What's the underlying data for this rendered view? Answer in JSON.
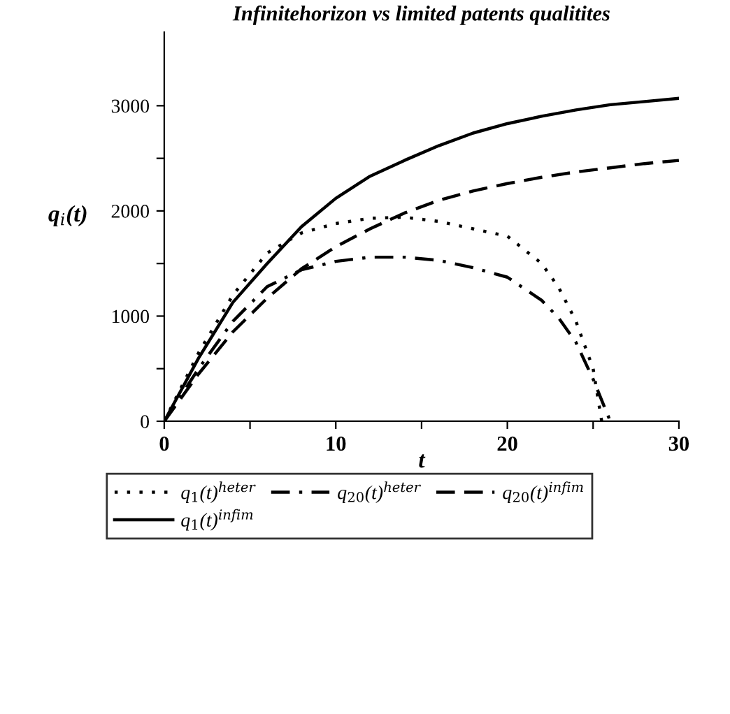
{
  "chart_data": {
    "type": "line",
    "title": "Infinitehorizon vs limited patents qualitites",
    "xlabel": "t",
    "ylabel": "q$_{i}$(t)",
    "xlim": [
      0,
      30
    ],
    "ylim": [
      0,
      3700
    ],
    "xticks": [
      0,
      {
        "value": 5,
        "label": null
      },
      10,
      {
        "value": 15,
        "label": null
      },
      20,
      {
        "value": 25,
        "label": null
      },
      30
    ],
    "yticks": [
      0,
      {
        "value": 500,
        "label": null
      },
      1000,
      {
        "value": 1500,
        "label": null
      },
      2000,
      {
        "value": 2500,
        "label": null
      },
      3000
    ],
    "grid": false,
    "legend": "bottom",
    "series": [
      {
        "name": "q$_{1}$(t)$^{heter}$",
        "color": "#000000",
        "line_style": "dotted",
        "x": [
          0,
          2,
          4,
          6,
          8,
          10,
          12,
          14,
          16,
          18,
          20,
          22,
          23,
          24,
          25,
          25.5
        ],
        "values": [
          0,
          650,
          1200,
          1600,
          1790,
          1880,
          1930,
          1940,
          1900,
          1830,
          1760,
          1500,
          1270,
          950,
          500,
          0
        ]
      },
      {
        "name": "q$_{20}$(t)$^{heter}$",
        "color": "#000000",
        "line_style": "dashdot",
        "x": [
          0,
          2,
          4,
          6,
          8,
          10,
          12,
          14,
          16,
          18,
          20,
          22,
          23,
          24,
          25,
          26
        ],
        "values": [
          0,
          500,
          950,
          1280,
          1440,
          1520,
          1560,
          1560,
          1530,
          1460,
          1370,
          1150,
          980,
          750,
          400,
          0
        ]
      },
      {
        "name": "q$_{20}$(t)$^{infim}$",
        "color": "#000000",
        "line_style": "dashed",
        "x": [
          0,
          2,
          4,
          6,
          8,
          10,
          12,
          14,
          16,
          18,
          20,
          22,
          24,
          26,
          28,
          30
        ],
        "values": [
          0,
          450,
          850,
          1170,
          1450,
          1660,
          1830,
          1980,
          2100,
          2190,
          2260,
          2320,
          2370,
          2410,
          2450,
          2480
        ]
      },
      {
        "name": "q$_{1}$(t)$^{infim}$",
        "color": "#000000",
        "line_style": "solid",
        "x": [
          0,
          2,
          4,
          6,
          8,
          10,
          12,
          14,
          16,
          18,
          20,
          22,
          24,
          26,
          28,
          30
        ],
        "values": [
          0,
          600,
          1130,
          1500,
          1850,
          2120,
          2330,
          2480,
          2620,
          2740,
          2830,
          2900,
          2960,
          3010,
          3040,
          3070
        ]
      }
    ]
  }
}
